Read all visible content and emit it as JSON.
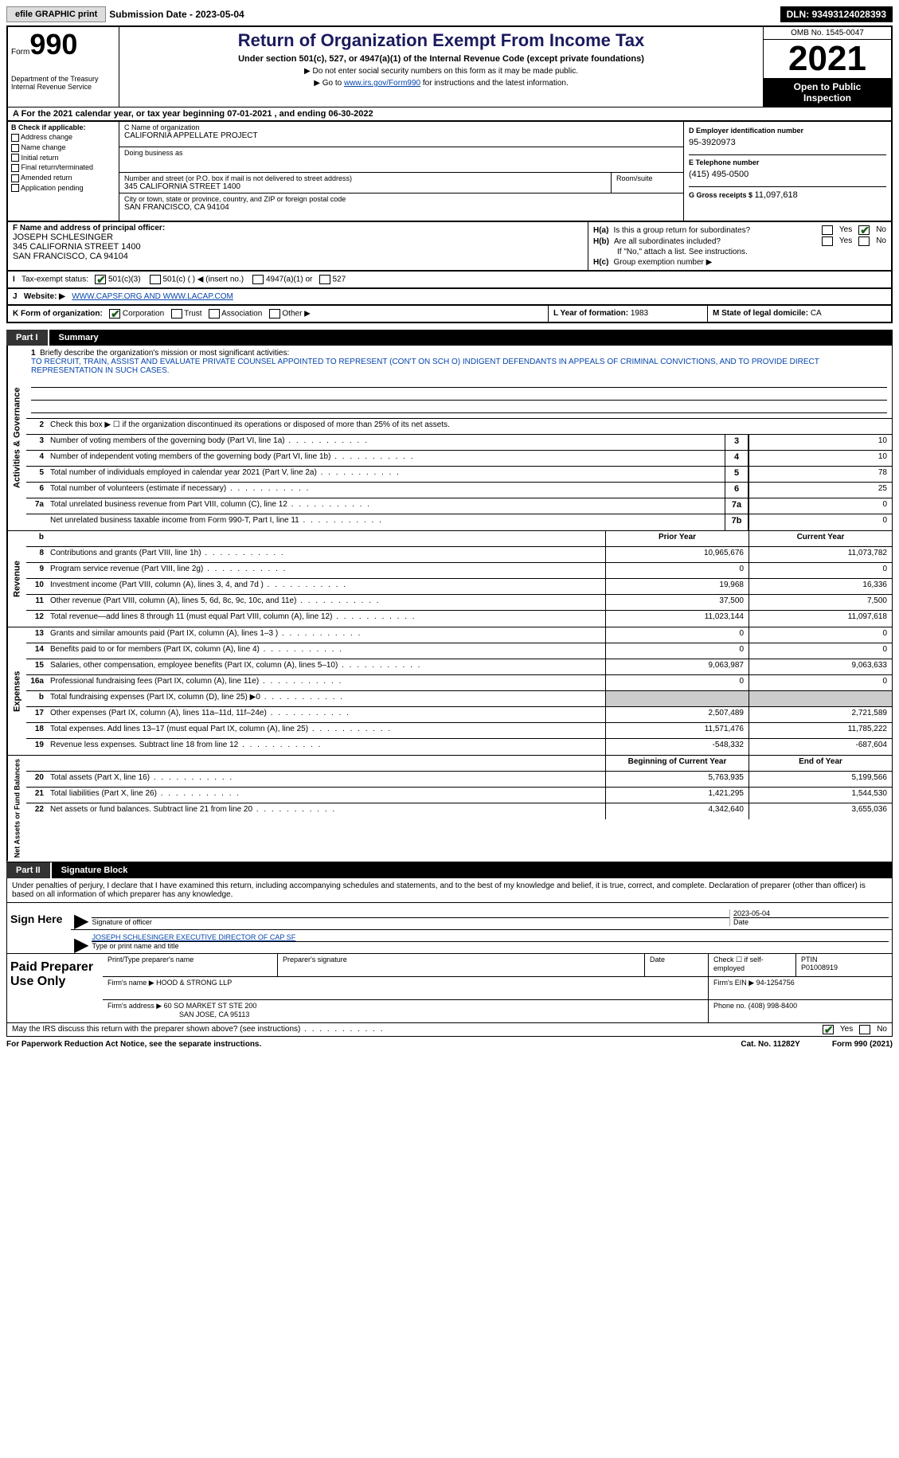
{
  "top_bar": {
    "efile_btn": "efile GRAPHIC print",
    "sub_date_label": "Submission Date - ",
    "sub_date": "2023-05-04",
    "dln_label": "DLN: ",
    "dln": "93493124028393"
  },
  "header": {
    "form_label": "Form",
    "form_num": "990",
    "dept": "Department of the Treasury\nInternal Revenue Service",
    "title": "Return of Organization Exempt From Income Tax",
    "subtitle": "Under section 501(c), 527, or 4947(a)(1) of the Internal Revenue Code (except private foundations)",
    "instr1": "Do not enter social security numbers on this form as it may be made public.",
    "instr2_pre": "Go to ",
    "instr2_link": "www.irs.gov/Form990",
    "instr2_post": " for instructions and the latest information.",
    "omb": "OMB No. 1545-0047",
    "year": "2021",
    "open_pub": "Open to Public\nInspection"
  },
  "row_a": {
    "text": "A For the 2021 calendar year, or tax year beginning ",
    "begin": "07-01-2021",
    "mid": " , and ending ",
    "end": "06-30-2022"
  },
  "col_b": {
    "header": "B Check if applicable:",
    "items": [
      "Address change",
      "Name change",
      "Initial return",
      "Final return/terminated",
      "Amended return",
      "Application pending"
    ]
  },
  "col_c": {
    "name_label": "C Name of organization",
    "name": "CALIFORNIA APPELLATE PROJECT",
    "dba_label": "Doing business as",
    "dba": "",
    "street_label": "Number and street (or P.O. box if mail is not delivered to street address)",
    "street": "345 CALIFORNIA STREET 1400",
    "room_label": "Room/suite",
    "room": "",
    "city_label": "City or town, state or province, country, and ZIP or foreign postal code",
    "city": "SAN FRANCISCO, CA  94104"
  },
  "col_d": {
    "ein_label": "D Employer identification number",
    "ein": "95-3920973",
    "phone_label": "E Telephone number",
    "phone": "(415) 495-0500",
    "gross_label": "G Gross receipts $ ",
    "gross": "11,097,618"
  },
  "row_f": {
    "label": "F Name and address of principal officer:",
    "name": "JOSEPH SCHLESINGER",
    "addr1": "345 CALIFORNIA STREET 1400",
    "addr2": "SAN FRANCISCO, CA  94104"
  },
  "row_h": {
    "ha_label": "H(a)",
    "ha_text": "Is this a group return for subordinates?",
    "hb_label": "H(b)",
    "hb_text": "Are all subordinates included?",
    "hb_note": "If \"No,\" attach a list. See instructions.",
    "hc_label": "H(c)",
    "hc_text": "Group exemption number ▶"
  },
  "row_i": {
    "label": "I",
    "text": "Tax-exempt status:",
    "opt1": "501(c)(3)",
    "opt2": "501(c) (  ) ◀ (insert no.)",
    "opt3": "4947(a)(1) or",
    "opt4": "527"
  },
  "row_j": {
    "label": "J",
    "text": "Website: ▶",
    "url": "WWW.CAPSF.ORG AND WWW.LACAP.COM"
  },
  "row_k": {
    "label": "K Form of organization:",
    "opts": [
      "Corporation",
      "Trust",
      "Association",
      "Other ▶"
    ]
  },
  "row_l": {
    "label": "L Year of formation: ",
    "val": "1983"
  },
  "row_m": {
    "label": "M State of legal domicile: ",
    "val": "CA"
  },
  "part1": {
    "num": "Part I",
    "title": "Summary"
  },
  "summary": {
    "line1_label": "Briefly describe the organization's mission or most significant activities:",
    "line1_text": "TO RECRUIT, TRAIN, ASSIST AND EVALUATE PRIVATE COUNSEL APPOINTED TO REPRESENT (CON'T ON SCH O) INDIGENT DEFENDANTS IN APPEALS OF CRIMINAL CONVICTIONS, AND TO PROVIDE DIRECT REPRESENTATION IN SUCH CASES.",
    "line2": "Check this box ▶ ☐  if the organization discontinued its operations or disposed of more than 25% of its net assets.",
    "gov_label": "Activities & Governance",
    "rev_label": "Revenue",
    "exp_label": "Expenses",
    "net_label": "Net Assets or Fund Balances",
    "prior_hdr": "Prior Year",
    "current_hdr": "Current Year",
    "begin_hdr": "Beginning of Current Year",
    "end_hdr": "End of Year",
    "rows_gov": [
      {
        "n": "3",
        "d": "Number of voting members of the governing body (Part VI, line 1a)",
        "box": "3",
        "v": "10"
      },
      {
        "n": "4",
        "d": "Number of independent voting members of the governing body (Part VI, line 1b)",
        "box": "4",
        "v": "10"
      },
      {
        "n": "5",
        "d": "Total number of individuals employed in calendar year 2021 (Part V, line 2a)",
        "box": "5",
        "v": "78"
      },
      {
        "n": "6",
        "d": "Total number of volunteers (estimate if necessary)",
        "box": "6",
        "v": "25"
      },
      {
        "n": "7a",
        "d": "Total unrelated business revenue from Part VIII, column (C), line 12",
        "box": "7a",
        "v": "0"
      },
      {
        "n": "",
        "d": "Net unrelated business taxable income from Form 990-T, Part I, line 11",
        "box": "7b",
        "v": "0"
      }
    ],
    "rows_rev": [
      {
        "n": "8",
        "d": "Contributions and grants (Part VIII, line 1h)",
        "p": "10,965,676",
        "c": "11,073,782"
      },
      {
        "n": "9",
        "d": "Program service revenue (Part VIII, line 2g)",
        "p": "0",
        "c": "0"
      },
      {
        "n": "10",
        "d": "Investment income (Part VIII, column (A), lines 3, 4, and 7d )",
        "p": "19,968",
        "c": "16,336"
      },
      {
        "n": "11",
        "d": "Other revenue (Part VIII, column (A), lines 5, 6d, 8c, 9c, 10c, and 11e)",
        "p": "37,500",
        "c": "7,500"
      },
      {
        "n": "12",
        "d": "Total revenue—add lines 8 through 11 (must equal Part VIII, column (A), line 12)",
        "p": "11,023,144",
        "c": "11,097,618"
      }
    ],
    "rows_exp": [
      {
        "n": "13",
        "d": "Grants and similar amounts paid (Part IX, column (A), lines 1–3 )",
        "p": "0",
        "c": "0"
      },
      {
        "n": "14",
        "d": "Benefits paid to or for members (Part IX, column (A), line 4)",
        "p": "0",
        "c": "0"
      },
      {
        "n": "15",
        "d": "Salaries, other compensation, employee benefits (Part IX, column (A), lines 5–10)",
        "p": "9,063,987",
        "c": "9,063,633"
      },
      {
        "n": "16a",
        "d": "Professional fundraising fees (Part IX, column (A), line 11e)",
        "p": "0",
        "c": "0"
      },
      {
        "n": "b",
        "d": "Total fundraising expenses (Part IX, column (D), line 25) ▶0",
        "p": "",
        "c": "",
        "grey": true
      },
      {
        "n": "17",
        "d": "Other expenses (Part IX, column (A), lines 11a–11d, 11f–24e)",
        "p": "2,507,489",
        "c": "2,721,589"
      },
      {
        "n": "18",
        "d": "Total expenses. Add lines 13–17 (must equal Part IX, column (A), line 25)",
        "p": "11,571,476",
        "c": "11,785,222"
      },
      {
        "n": "19",
        "d": "Revenue less expenses. Subtract line 18 from line 12",
        "p": "-548,332",
        "c": "-687,604"
      }
    ],
    "rows_net": [
      {
        "n": "20",
        "d": "Total assets (Part X, line 16)",
        "p": "5,763,935",
        "c": "5,199,566"
      },
      {
        "n": "21",
        "d": "Total liabilities (Part X, line 26)",
        "p": "1,421,295",
        "c": "1,544,530"
      },
      {
        "n": "22",
        "d": "Net assets or fund balances. Subtract line 21 from line 20",
        "p": "4,342,640",
        "c": "3,655,036"
      }
    ]
  },
  "part2": {
    "num": "Part II",
    "title": "Signature Block"
  },
  "sig": {
    "intro": "Under penalties of perjury, I declare that I have examined this return, including accompanying schedules and statements, and to the best of my knowledge and belief, it is true, correct, and complete. Declaration of preparer (other than officer) is based on all information of which preparer has any knowledge.",
    "sign_here": "Sign Here",
    "sig_label": "Signature of officer",
    "date_label": "Date",
    "sig_date": "2023-05-04",
    "name_label": "Type or print name and title",
    "name": "JOSEPH SCHLESINGER  EXECUTIVE DIRECTOR OF CAP SF"
  },
  "prep": {
    "label": "Paid Preparer Use Only",
    "r1": {
      "c1": "Print/Type preparer's name",
      "c2": "Preparer's signature",
      "c3": "Date",
      "c4_label": "Check ☐ if self-employed",
      "c5_label": "PTIN",
      "c5": "P01008919"
    },
    "r2": {
      "label": "Firm's name   ▶",
      "val": "HOOD & STRONG LLP",
      "ein_label": "Firm's EIN ▶",
      "ein": "94-1254756"
    },
    "r3": {
      "label": "Firm's address ▶",
      "val1": "60 SO MARKET ST STE 200",
      "val2": "SAN JOSE, CA  95113",
      "phone_label": "Phone no.",
      "phone": "(408) 998-8400"
    }
  },
  "footer": {
    "q": "May the IRS discuss this return with the preparer shown above? (see instructions)",
    "yes": "Yes",
    "no": "No"
  },
  "bottom": {
    "pra": "For Paperwork Reduction Act Notice, see the separate instructions.",
    "cat": "Cat. No. 11282Y",
    "form": "Form 990 (2021)"
  }
}
